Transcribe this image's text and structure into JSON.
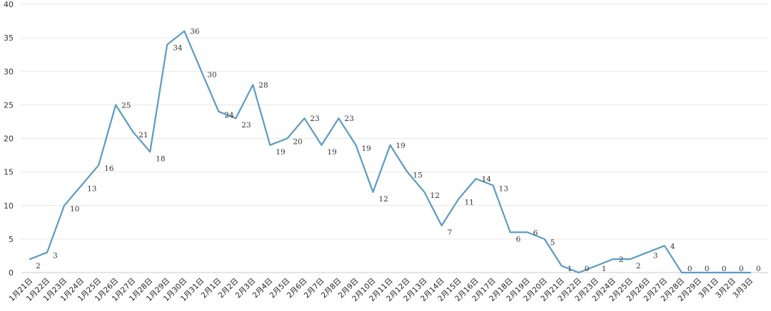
{
  "chart_data": {
    "type": "line",
    "title": "",
    "xlabel": "",
    "ylabel": "",
    "ylim": [
      0,
      40
    ],
    "yticks": [
      0,
      5,
      10,
      15,
      20,
      25,
      30,
      35,
      40
    ],
    "grid": true,
    "legend": "none",
    "line_color": "#5b9bc4",
    "categories": [
      "1月21日",
      "1月22日",
      "1月23日",
      "1月24日",
      "1月25日",
      "1月26日",
      "1月27日",
      "1月28日",
      "1月29日",
      "1月30日",
      "1月31日",
      "2月1日",
      "2月2日",
      "2月3日",
      "2月4日",
      "2月5日",
      "2月6日",
      "2月7日",
      "2月8日",
      "2月9日",
      "2月10日",
      "2月11日",
      "2月12日",
      "2月13日",
      "2月14日",
      "2月15日",
      "2月16日",
      "2月17日",
      "2月18日",
      "2月19日",
      "2月20日",
      "2月21日",
      "2月22日",
      "2月23日",
      "2月24日",
      "2月25日",
      "2月26日",
      "2月27日",
      "2月28日",
      "2月29日",
      "3月1日",
      "3月2日",
      "3月3日"
    ],
    "values": [
      2,
      3,
      10,
      13,
      16,
      25,
      21,
      18,
      34,
      36,
      30,
      24,
      23,
      28,
      19,
      20,
      23,
      19,
      23,
      19,
      12,
      19,
      15,
      12,
      7,
      11,
      14,
      13,
      6,
      6,
      5,
      1,
      0,
      1,
      2,
      2,
      3,
      4,
      0,
      0,
      0,
      0,
      0
    ]
  }
}
